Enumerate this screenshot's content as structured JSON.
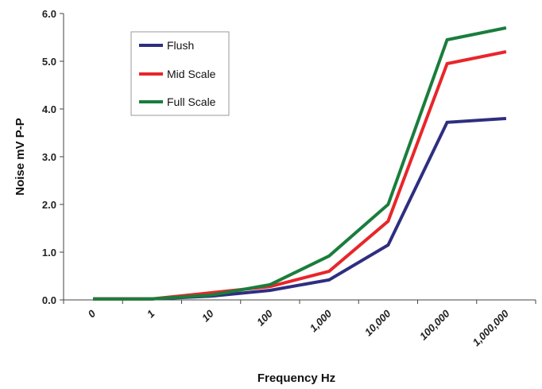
{
  "chart_data": {
    "type": "line",
    "xlabel": "Frequency Hz",
    "ylabel": "Noise mV P-P",
    "categories": [
      "0",
      "1",
      "10",
      "100",
      "1,000",
      "10,000",
      "100,000",
      "1,000,000"
    ],
    "y_ticks": [
      "0.0",
      "1.0",
      "2.0",
      "3.0",
      "4.0",
      "5.0",
      "6.0"
    ],
    "ylim": [
      0,
      6
    ],
    "grid": false,
    "legend_position": "top-left",
    "series": [
      {
        "name": "Flush",
        "color": "#2e2e80",
        "values": [
          0.02,
          0.02,
          0.08,
          0.2,
          0.42,
          1.15,
          3.72,
          3.8
        ]
      },
      {
        "name": "Mid Scale",
        "color": "#e8262a",
        "values": [
          0.02,
          0.02,
          0.15,
          0.28,
          0.6,
          1.65,
          4.95,
          5.2
        ]
      },
      {
        "name": "Full Scale",
        "color": "#1a7d3c",
        "values": [
          0.02,
          0.02,
          0.1,
          0.32,
          0.92,
          2.0,
          5.45,
          5.7
        ]
      }
    ]
  }
}
